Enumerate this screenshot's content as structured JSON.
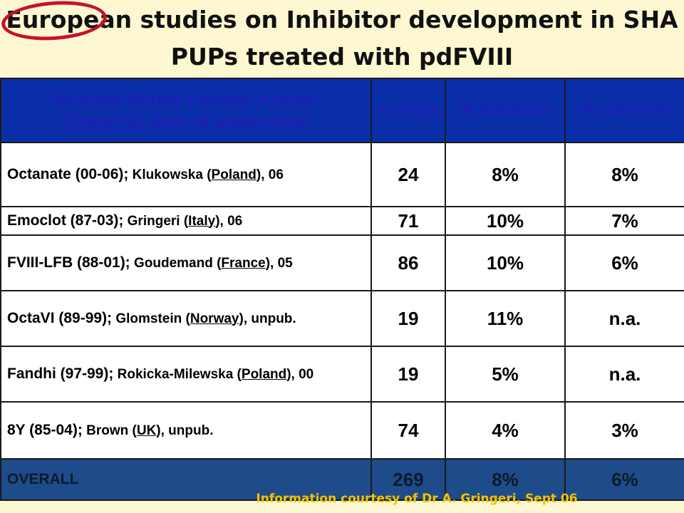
{
  "slide": {
    "title_line1": "European studies on Inhibitor development in SHA",
    "title_line2": "PUPs treated with pdFVIII",
    "footer": "Information courtesy of Dr A. Gringeri, Sept 06",
    "colors": {
      "background": "#fdf8d2",
      "header_bg": "#0a2ea8",
      "header_text": "#1e1eb8",
      "overall_bg": "#1e4b8a",
      "footer_text": "#f2c200",
      "highlight_oval": "#c8102e"
    }
  },
  "table": {
    "headers": {
      "product_part1": "Product (Study Period); Author",
      "product_open": "(",
      "product_country": "Country",
      "product_rest": "), date of publication",
      "pts": "# of pts",
      "inhibitor": "% Inhibitor",
      "hti": "% with HTI"
    },
    "rows": [
      {
        "product": "Octanate (00-06);",
        "author": " Klukowska (",
        "country": "Poland",
        "rest": "), 06",
        "pts": "24",
        "inhibitor": "8%",
        "hti": "8%"
      },
      {
        "product": "Emoclot (87-03);",
        "author": " Gringeri (",
        "country": "Italy",
        "rest": "), 06",
        "pts": "71",
        "inhibitor": "10%",
        "hti": "7%"
      },
      {
        "product": "FVIII-LFB (88-01);",
        "author": " Goudemand (",
        "country": "France",
        "rest": "), 05",
        "pts": "86",
        "inhibitor": "10%",
        "hti": "6%"
      },
      {
        "product": "OctaVI (89-99);",
        "author": " Glomstein (",
        "country": "Norway",
        "rest": "), unpub.",
        "pts": "19",
        "inhibitor": "11%",
        "hti": "n.a."
      },
      {
        "product": "Fandhi (97-99);",
        "author": " Rokicka-Milewska (",
        "country": "Poland",
        "rest": "), 00",
        "pts": "19",
        "inhibitor": "5%",
        "hti": "n.a."
      },
      {
        "product": "8Y (85-04);",
        "author": " Brown (",
        "country": "UK",
        "rest": "), unpub.",
        "pts": "74",
        "inhibitor": "4%",
        "hti": "3%"
      }
    ],
    "overall": {
      "label": "OVERALL",
      "pts": "269",
      "inhibitor": "8%",
      "hti": "6%"
    }
  }
}
